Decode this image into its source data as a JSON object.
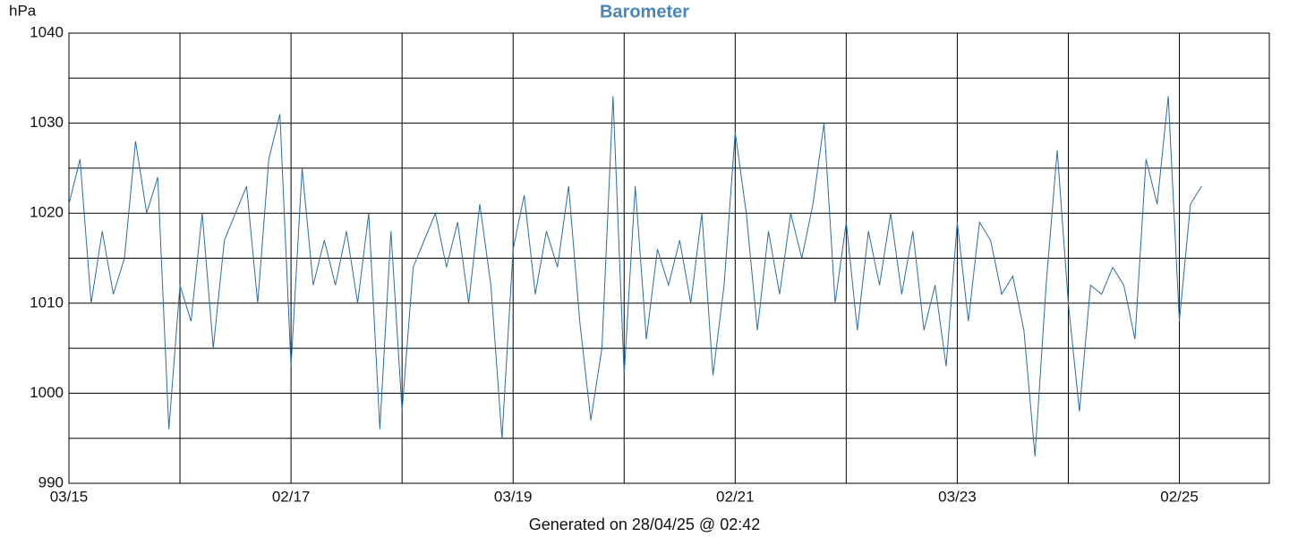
{
  "chart_data": {
    "type": "line",
    "title": "Barometer",
    "y_unit": "hPa",
    "footer": "Generated on 28/04/25 @ 02:42",
    "xlim": [
      0,
      10.81
    ],
    "ylim": [
      990,
      1040
    ],
    "xticks": [
      {
        "value": 0,
        "label": "03/15"
      },
      {
        "value": 2,
        "label": "02/17"
      },
      {
        "value": 4,
        "label": "03/19"
      },
      {
        "value": 6,
        "label": "02/21"
      },
      {
        "value": 8,
        "label": "03/23"
      },
      {
        "value": 10,
        "label": "02/25"
      }
    ],
    "xminorticks": [
      1,
      3,
      5,
      7,
      9
    ],
    "yticks": [
      990,
      1000,
      1010,
      1020,
      1030,
      1040
    ],
    "yminorticks": [
      995,
      1005,
      1015,
      1025,
      1035
    ],
    "grid": true,
    "x": [
      0,
      0.1,
      0.2,
      0.3,
      0.4,
      0.5,
      0.6,
      0.7,
      0.8,
      0.9,
      1,
      1.1,
      1.2,
      1.3,
      1.4,
      1.5,
      1.6,
      1.7,
      1.8,
      1.9,
      2,
      2.1,
      2.2,
      2.3,
      2.4,
      2.5,
      2.6,
      2.7,
      2.8,
      2.9,
      3,
      3.1,
      3.2,
      3.3,
      3.4,
      3.5,
      3.6,
      3.7,
      3.8,
      3.9,
      4,
      4.1,
      4.2,
      4.3,
      4.4,
      4.5,
      4.6,
      4.7,
      4.8,
      4.9,
      5,
      5.1,
      5.2,
      5.3,
      5.4,
      5.5,
      5.6,
      5.7,
      5.8,
      5.9,
      6,
      6.1,
      6.2,
      6.3,
      6.4,
      6.5,
      6.6,
      6.7,
      6.8,
      6.9,
      7,
      7.1,
      7.2,
      7.3,
      7.4,
      7.5,
      7.6,
      7.7,
      7.8,
      7.9,
      8,
      8.1,
      8.2,
      8.3,
      8.4,
      8.5,
      8.6,
      8.7,
      8.8,
      8.9,
      9,
      9.1,
      9.2,
      9.3,
      9.4,
      9.5,
      9.6,
      9.7,
      9.8,
      9.9,
      10,
      10.1,
      10.2
    ],
    "series": [
      {
        "name": "Barometer",
        "color": "#2b6ea6",
        "values": [
          1021,
          1026,
          1010,
          1018,
          1011,
          1015,
          1028,
          1020,
          1024,
          996,
          1012,
          1008,
          1020,
          1005,
          1017,
          1020,
          1023,
          1010,
          1026,
          1031,
          1003,
          1025,
          1012,
          1017,
          1012,
          1018,
          1010,
          1020,
          996,
          1018,
          998,
          1014,
          1017,
          1020,
          1014,
          1019,
          1010,
          1021,
          1012,
          995,
          1016,
          1022,
          1011,
          1018,
          1014,
          1023,
          1008,
          997,
          1005,
          1033,
          1002,
          1023,
          1006,
          1016,
          1012,
          1017,
          1010,
          1020,
          1002,
          1012,
          1029,
          1020,
          1007,
          1018,
          1011,
          1020,
          1015,
          1021,
          1030,
          1010,
          1019,
          1007,
          1018,
          1012,
          1020,
          1011,
          1018,
          1007,
          1012,
          1003,
          1019,
          1008,
          1019,
          1017,
          1011,
          1013,
          1007,
          993,
          1012,
          1027,
          1010,
          998,
          1012,
          1011,
          1014,
          1012,
          1006,
          1026,
          1021,
          1033,
          1008,
          1021,
          1023
        ]
      }
    ]
  }
}
